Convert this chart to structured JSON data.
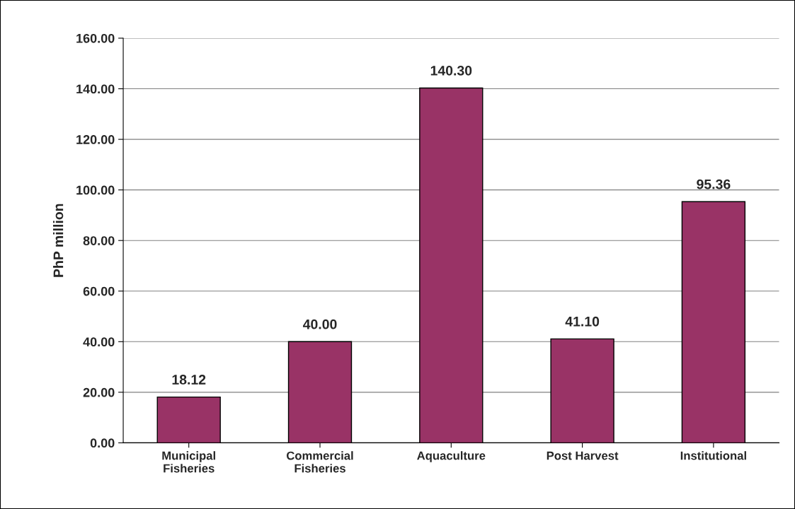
{
  "chart_data": {
    "type": "bar",
    "ylabel": "PhP million",
    "categories": [
      "Municipal\nFisheries",
      "Commercial\nFisheries",
      "Aquaculture",
      "Post Harvest",
      "Institutional"
    ],
    "values": [
      18.12,
      40.0,
      140.3,
      41.1,
      95.36
    ],
    "value_labels": [
      "18.12",
      "40.00",
      "140.30",
      "41.10",
      "95.36"
    ],
    "color": "#993366",
    "ylim": [
      0,
      160
    ],
    "yticks": [
      {
        "value": 0,
        "label": "0.00"
      },
      {
        "value": 20,
        "label": "20.00"
      },
      {
        "value": 40,
        "label": "40.00"
      },
      {
        "value": 60,
        "label": "60.00"
      },
      {
        "value": 80,
        "label": "80.00"
      },
      {
        "value": 100,
        "label": "100.00"
      },
      {
        "value": 120,
        "label": "120.00"
      },
      {
        "value": 140,
        "label": "140.00"
      },
      {
        "value": 160,
        "label": "160.00"
      }
    ],
    "grid": "y",
    "legend": false
  }
}
